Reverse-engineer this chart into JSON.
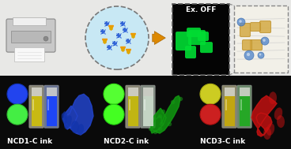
{
  "ink_labels": [
    "NCD1-C ink",
    "NCD2-C ink",
    "NCD3-C ink"
  ],
  "label_color": "#ffffff",
  "label_fontsize": 6.5,
  "ex_off_text": "Ex. OFF",
  "ex_off_text_color": "#ffffff",
  "map_color": "#00dd33",
  "arrow_color": "#dd8800",
  "top_panel_bg": "#c8e8f4",
  "ncd1_circle_top": "#2255ee",
  "ncd1_circle_bot": "#44ee44",
  "ncd2_circle_top": "#66ff44",
  "ncd2_circle_bot": "#55ff33",
  "ncd3_circle_top": "#cccc22",
  "ncd3_circle_bot": "#cc2020",
  "tube_yellow": "#d8c800",
  "tube_blue_glow": "#3366ff",
  "tube_green_glow": "#33bb33",
  "tube_body": "#ddddd0",
  "dragon1_color": "#2244cc",
  "dragon2_color": "#119911",
  "splash_color": "#cc1111",
  "bottom_bg": "#0a0a0a",
  "top_bg": "#e8e8e6"
}
